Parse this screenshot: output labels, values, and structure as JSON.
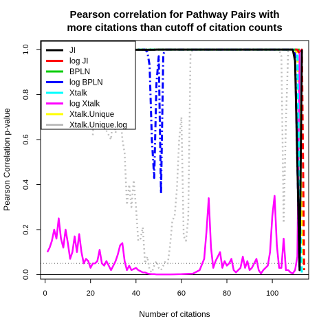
{
  "chart_data": {
    "type": "line",
    "title": [
      "Pearson correlation for Pathway Pairs with",
      "more citations than cutoff of citation counts"
    ],
    "xlabel": "Number of citations",
    "ylabel": "Pearson Correlation p-value",
    "xlim": [
      -2,
      116
    ],
    "ylim": [
      -0.02,
      1.04
    ],
    "xticks": [
      0,
      20,
      40,
      60,
      80,
      100
    ],
    "yticks": [
      0.0,
      0.2,
      0.4,
      0.6,
      0.8,
      1.0
    ],
    "ytick_labels": [
      "0.0",
      "0.2",
      "0.4",
      "0.6",
      "0.8",
      "1.0"
    ],
    "reference_line": {
      "y": 0.05,
      "style": "dotted",
      "color": "#555555"
    },
    "legend": {
      "placement": "top-left"
    },
    "series": [
      {
        "name": "JI",
        "color": "#000000",
        "dash": "solid",
        "width": 3,
        "x": [
          37,
          48,
          49,
          60,
          100,
          109,
          110,
          111,
          112,
          113
        ],
        "y": [
          0.999,
          0.999,
          1.0,
          1.0,
          1.0,
          1.0,
          0.95,
          0.5,
          0.02,
          1.0
        ]
      },
      {
        "name": "log JI",
        "color": "#ff0000",
        "dash": "dashed",
        "width": 3,
        "x": [
          110,
          111,
          112,
          113,
          114
        ],
        "y": [
          1.0,
          1.0,
          0.98,
          1.0,
          0.02
        ]
      },
      {
        "name": "BPLN",
        "color": "#00cd00",
        "dash": "dotted",
        "width": 3,
        "x": [
          37,
          60,
          110,
          112
        ],
        "y": [
          1.0,
          1.0,
          1.0,
          1.0
        ]
      },
      {
        "name": "log BPLN",
        "color": "#0000ff",
        "dash": "dashdot",
        "width": 3,
        "x": [
          37,
          44,
          45,
          46,
          47,
          48,
          49,
          50,
          51,
          52,
          53,
          55,
          60,
          100,
          109,
          110,
          111,
          112
        ],
        "y": [
          1.0,
          1.0,
          0.99,
          0.93,
          0.6,
          0.43,
          0.85,
          0.97,
          0.36,
          0.98,
          1.0,
          1.0,
          1.0,
          1.0,
          1.0,
          0.98,
          0.5,
          0.02
        ]
      },
      {
        "name": "Xtalk",
        "color": "#00ffff",
        "dash": "dashed",
        "width": 3,
        "x": [
          37,
          60,
          100,
          111,
          112,
          113
        ],
        "y": [
          1.0,
          1.0,
          1.0,
          1.0,
          0.3,
          0.0
        ]
      },
      {
        "name": "log Xtalk",
        "color": "#ff00ff",
        "dash": "solid",
        "width": 2.5,
        "x": [
          1,
          2,
          3,
          4,
          5,
          6,
          7,
          8,
          9,
          10,
          11,
          12,
          13,
          14,
          15,
          16,
          17,
          18,
          19,
          20,
          21,
          22,
          23,
          24,
          25,
          26,
          27,
          28,
          29,
          30,
          31,
          32,
          33,
          34,
          35,
          36,
          37,
          38,
          39,
          40,
          41,
          42,
          43,
          44,
          45,
          46,
          47,
          48,
          49,
          50,
          55,
          60,
          65,
          68,
          70,
          71,
          72,
          73,
          74,
          75,
          76,
          77,
          78,
          79,
          80,
          81,
          82,
          83,
          84,
          85,
          86,
          87,
          88,
          89,
          90,
          91,
          92,
          93,
          94,
          95,
          96,
          97,
          98,
          99,
          100,
          101,
          102,
          103,
          104,
          105,
          106,
          107,
          108,
          109,
          110,
          111,
          112
        ],
        "y": [
          0.1,
          0.12,
          0.15,
          0.2,
          0.16,
          0.25,
          0.16,
          0.12,
          0.2,
          0.14,
          0.07,
          0.1,
          0.17,
          0.1,
          0.18,
          0.1,
          0.05,
          0.07,
          0.06,
          0.03,
          0.05,
          0.05,
          0.06,
          0.11,
          0.05,
          0.04,
          0.06,
          0.04,
          0.02,
          0.04,
          0.06,
          0.09,
          0.13,
          0.14,
          0.06,
          0.02,
          0.04,
          0.02,
          0.025,
          0.03,
          0.02,
          0.015,
          0.01,
          0.01,
          0.005,
          0.003,
          0.002,
          0.002,
          0.001,
          0.001,
          0.001,
          0.002,
          0.004,
          0.02,
          0.07,
          0.19,
          0.34,
          0.12,
          0.03,
          0.06,
          0.08,
          0.1,
          0.03,
          0.06,
          0.04,
          0.05,
          0.07,
          0.02,
          0.01,
          0.02,
          0.03,
          0.08,
          0.03,
          0.06,
          0.02,
          0.03,
          0.05,
          0.07,
          0.02,
          0.005,
          0.02,
          0.03,
          0.04,
          0.1,
          0.26,
          0.35,
          0.13,
          0.03,
          0.03,
          0.16,
          0.02,
          0.02,
          0.01,
          0.005,
          0.02,
          0.08,
          1.0
        ]
      },
      {
        "name": "Xtalk.Unique",
        "color": "#ffff00",
        "dash": "dashed",
        "width": 3,
        "x": [
          37,
          60,
          100,
          110,
          111,
          112,
          113,
          114
        ],
        "y": [
          1.0,
          1.0,
          1.0,
          1.0,
          0.98,
          0.7,
          0.2,
          0.02
        ]
      },
      {
        "name": "Xtalk.Unique.log",
        "color": "#bebebe",
        "dash": "dotted",
        "width": 2.5,
        "x": [
          21,
          22,
          23,
          24,
          25,
          26,
          27,
          28,
          29,
          30,
          31,
          32,
          33,
          34,
          35,
          36,
          37,
          38,
          39,
          40,
          41,
          42,
          43,
          44,
          45,
          46,
          47,
          48,
          49,
          50,
          51,
          52,
          53,
          54,
          55,
          56,
          57,
          58,
          59,
          60,
          61,
          62,
          63,
          64,
          65,
          66,
          67,
          68,
          70,
          80,
          90,
          100,
          103,
          104,
          105,
          106,
          107,
          108
        ],
        "y": [
          0.62,
          0.78,
          0.97,
          0.7,
          0.75,
          0.78,
          0.64,
          0.62,
          0.6,
          0.72,
          0.63,
          0.71,
          0.74,
          0.6,
          0.54,
          0.31,
          0.4,
          0.3,
          0.42,
          0.3,
          0.15,
          0.16,
          0.21,
          0.05,
          0.08,
          0.02,
          0.01,
          0.04,
          0.06,
          0.03,
          0.02,
          0.04,
          0.06,
          0.05,
          0.13,
          0.24,
          0.26,
          0.38,
          0.6,
          0.7,
          0.17,
          0.15,
          0.25,
          0.98,
          1.0,
          1.0,
          1.0,
          1.0,
          1.0,
          1.0,
          1.0,
          1.0,
          1.0,
          0.97,
          0.23,
          0.68,
          1.0,
          1.0
        ]
      }
    ]
  }
}
